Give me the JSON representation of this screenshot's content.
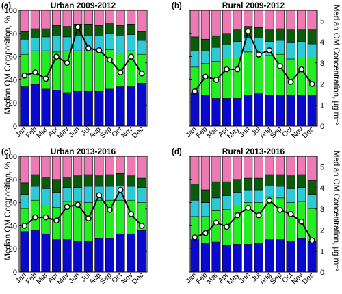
{
  "figure": {
    "left_ylabel_top": "Median OM Composition, %",
    "left_ylabel_bottom": "Median OM Composition, %",
    "right_ylabel_top": "Median OM Concentration, μg m⁻³",
    "right_ylabel_bottom": "Median OM Concentration, μg m⁻³"
  },
  "colors": {
    "component1": "#0a0acf",
    "component2": "#22ee22",
    "component3": "#2ccad6",
    "component4": "#0a5c0a",
    "component5": "#ee7ab5",
    "line": "#000000",
    "marker_fill": "#ffffff"
  },
  "chart_data": [
    {
      "type": "bar",
      "stacked": true,
      "panel_label": "(a)",
      "title": "Urban 2009-2012",
      "categories": [
        "Jan",
        "Feb",
        "Mar",
        "Apr",
        "May",
        "Jun",
        "Jul",
        "Aug",
        "Sep",
        "Oct",
        "Nov",
        "Dec"
      ],
      "ylim": [
        0,
        100
      ],
      "yticks": [
        0,
        20,
        40,
        60,
        80,
        100
      ],
      "y2lim": [
        0,
        5.5
      ],
      "y2ticks": [
        0,
        1,
        2,
        3,
        4,
        5
      ],
      "series": [
        {
          "values": [
            34,
            36,
            32,
            31,
            29,
            30,
            30,
            30,
            32,
            34,
            34,
            37
          ]
        },
        {
          "values": [
            28,
            29,
            33,
            33,
            36,
            35,
            35,
            35,
            34,
            29,
            31,
            25
          ]
        },
        {
          "values": [
            13,
            11,
            12,
            14,
            12,
            13,
            13,
            13,
            14,
            15,
            14,
            12
          ]
        },
        {
          "values": [
            7,
            8,
            7,
            9,
            9,
            10,
            10,
            9,
            9,
            9,
            9,
            8
          ]
        },
        {
          "values": [
            18,
            16,
            16,
            13,
            14,
            12,
            12,
            13,
            11,
            13,
            12,
            18
          ]
        }
      ],
      "line": {
        "values": [
          2.4,
          2.55,
          2.25,
          3.3,
          3.0,
          4.7,
          3.7,
          3.6,
          3.15,
          2.55,
          3.3,
          2.5
        ]
      },
      "grid": false
    },
    {
      "type": "bar",
      "stacked": true,
      "panel_label": "(b)",
      "title": "Rural 2009-2012",
      "categories": [
        "Jan",
        "Feb",
        "Mar",
        "Apr",
        "May",
        "Jun",
        "Jul",
        "Aug",
        "Sep",
        "Oct",
        "Nov",
        "Dec"
      ],
      "ylim": [
        0,
        100
      ],
      "yticks": [
        0,
        20,
        40,
        60,
        80,
        100
      ],
      "y2lim": [
        0,
        5.5
      ],
      "y2ticks": [
        0,
        1,
        2,
        3,
        4,
        5
      ],
      "series": [
        {
          "values": [
            29,
            27,
            24,
            24,
            24,
            27,
            28,
            27,
            27,
            27,
            27,
            27
          ]
        },
        {
          "values": [
            22,
            27,
            32,
            35,
            35,
            37,
            35,
            34,
            35,
            31,
            32,
            32
          ]
        },
        {
          "values": [
            14,
            11,
            12,
            11,
            14,
            12,
            13,
            12,
            12,
            14,
            14,
            12
          ]
        },
        {
          "values": [
            12,
            10,
            10,
            10,
            10,
            10,
            9,
            10,
            10,
            11,
            10,
            12
          ]
        },
        {
          "values": [
            23,
            25,
            22,
            20,
            17,
            14,
            15,
            17,
            16,
            17,
            17,
            17
          ]
        }
      ],
      "line": {
        "values": [
          1.65,
          2.35,
          2.2,
          2.7,
          2.7,
          4.5,
          3.4,
          3.6,
          2.85,
          2.1,
          2.7,
          2.0
        ]
      },
      "grid": false
    },
    {
      "type": "bar",
      "stacked": true,
      "panel_label": "(c)",
      "title": "Urban 2013-2016",
      "categories": [
        "Jan",
        "Feb",
        "Mar",
        "Apr",
        "May",
        "Jun",
        "Jul",
        "Aug",
        "Sep",
        "Oct",
        "Nov",
        "Dec"
      ],
      "ylim": [
        0,
        100
      ],
      "yticks": [
        0,
        20,
        40,
        60,
        80,
        100
      ],
      "y2lim": [
        0,
        5.5
      ],
      "y2ticks": [
        0,
        1,
        2,
        3,
        4,
        5
      ],
      "series": [
        {
          "values": [
            35,
            36,
            33,
            28,
            28,
            27,
            27,
            29,
            29,
            33,
            33,
            36
          ]
        },
        {
          "values": [
            20,
            26,
            24,
            28,
            33,
            34,
            33,
            33,
            33,
            29,
            29,
            24
          ]
        },
        {
          "values": [
            12,
            12,
            15,
            13,
            12,
            12,
            14,
            12,
            12,
            13,
            12,
            13
          ]
        },
        {
          "values": [
            10,
            10,
            10,
            11,
            9,
            10,
            10,
            9,
            10,
            10,
            9,
            8
          ]
        },
        {
          "values": [
            23,
            16,
            18,
            20,
            18,
            17,
            16,
            17,
            16,
            15,
            17,
            19
          ]
        }
      ],
      "line": {
        "values": [
          2.2,
          2.6,
          2.6,
          2.45,
          3.1,
          3.2,
          2.55,
          3.65,
          2.95,
          3.9,
          2.75,
          2.2
        ]
      },
      "grid": false
    },
    {
      "type": "bar",
      "stacked": true,
      "panel_label": "(d)",
      "title": "Rural 2013-2016",
      "categories": [
        "Jan",
        "Feb",
        "Mar",
        "Apr",
        "May",
        "Jun",
        "Jul",
        "Aug",
        "Sep",
        "Oct",
        "Nov",
        "Dec"
      ],
      "ylim": [
        0,
        100
      ],
      "yticks": [
        0,
        20,
        40,
        60,
        80,
        100
      ],
      "y2lim": [
        0,
        5.5
      ],
      "y2ticks": [
        0,
        1,
        2,
        3,
        4,
        5
      ],
      "series": [
        {
          "values": [
            28,
            25,
            26,
            23,
            24,
            24,
            25,
            28,
            28,
            27,
            29,
            27
          ]
        },
        {
          "values": [
            20,
            23,
            27,
            31,
            33,
            36,
            35,
            37,
            36,
            33,
            32,
            28
          ]
        },
        {
          "values": [
            14,
            12,
            11,
            12,
            12,
            11,
            11,
            10,
            10,
            12,
            12,
            12
          ]
        },
        {
          "values": [
            14,
            11,
            14,
            12,
            11,
            10,
            10,
            9,
            10,
            11,
            11,
            12
          ]
        },
        {
          "values": [
            24,
            29,
            22,
            22,
            20,
            19,
            19,
            16,
            16,
            17,
            16,
            21
          ]
        }
      ],
      "line": {
        "values": [
          1.65,
          1.85,
          2.35,
          2.15,
          2.7,
          3.05,
          2.7,
          3.4,
          2.95,
          2.75,
          2.4,
          1.5
        ]
      },
      "grid": false
    }
  ]
}
